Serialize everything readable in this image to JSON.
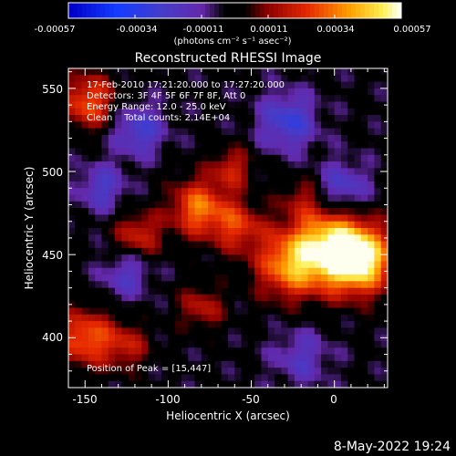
{
  "colorbar": {
    "ticks": [
      "-0.00057",
      "-0.00034",
      "-0.00011",
      "0.00011",
      "0.00034",
      "0.00057"
    ],
    "unit_label": "(photons cm⁻² s⁻¹ asec⁻²)"
  },
  "annotations": {
    "time_range": "17-Feb-2010 17:21:20.000 to 17:27:20.000",
    "detectors": "Detectors: 3F 4F 5F 6F 7F 8F, Att 0",
    "energy": "Energy Range: 12.0 - 25.0 keV",
    "algorithm": "Clean    Total counts: 2.14E+04",
    "peak": "Position of Peak = [15,447]"
  },
  "timestamp": "8-May-2022 19:24",
  "chart_data": {
    "type": "heatmap",
    "title": "Reconstructed RHESSI Image",
    "xlabel": "Heliocentric X (arcsec)",
    "ylabel": "Heliocentric Y (arcsec)",
    "xlim": [
      -160,
      32
    ],
    "ylim": [
      370,
      562
    ],
    "x_ticks": [
      "-150",
      "-100",
      "-50",
      "0"
    ],
    "y_ticks": [
      "400",
      "450",
      "500",
      "550"
    ],
    "x_tick_values": [
      -150,
      -100,
      -50,
      0
    ],
    "y_tick_values": [
      400,
      450,
      500,
      550
    ],
    "colorbar_range": [
      -0.00057,
      0.00057
    ],
    "peak_position": [
      15,
      447
    ],
    "grid": false,
    "sources": [
      {
        "x": 15,
        "y": 447,
        "amplitude": 0.00057,
        "sigma": 14
      },
      {
        "x": -5,
        "y": 455,
        "amplitude": 0.00045,
        "sigma": 16
      },
      {
        "x": -28,
        "y": 443,
        "amplitude": 0.00035,
        "sigma": 14
      },
      {
        "x": -82,
        "y": 478,
        "amplitude": 0.00036,
        "sigma": 12
      },
      {
        "x": -58,
        "y": 467,
        "amplitude": 0.00026,
        "sigma": 11
      },
      {
        "x": -118,
        "y": 462,
        "amplitude": 0.00024,
        "sigma": 10
      },
      {
        "x": -148,
        "y": 542,
        "amplitude": 0.00032,
        "sigma": 12
      },
      {
        "x": -150,
        "y": 400,
        "amplitude": 0.00034,
        "sigma": 12
      },
      {
        "x": -125,
        "y": 395,
        "amplitude": 0.0002,
        "sigma": 10
      },
      {
        "x": -62,
        "y": 502,
        "amplitude": 0.00022,
        "sigma": 9
      },
      {
        "x": -80,
        "y": 418,
        "amplitude": 0.0002,
        "sigma": 10
      },
      {
        "x": -20,
        "y": 485,
        "amplitude": 0.00014,
        "sigma": 9
      },
      {
        "x": -118,
        "y": 525,
        "amplitude": -0.00024,
        "sigma": 11
      },
      {
        "x": -28,
        "y": 530,
        "amplitude": -0.00026,
        "sigma": 12
      },
      {
        "x": 5,
        "y": 490,
        "amplitude": -0.00022,
        "sigma": 11
      },
      {
        "x": -125,
        "y": 438,
        "amplitude": -0.00018,
        "sigma": 10
      },
      {
        "x": -20,
        "y": 388,
        "amplitude": -0.00016,
        "sigma": 12
      },
      {
        "x": -140,
        "y": 490,
        "amplitude": -0.0002,
        "sigma": 10
      }
    ]
  },
  "colors": {
    "background": "#000000",
    "text": "#ffffff"
  }
}
